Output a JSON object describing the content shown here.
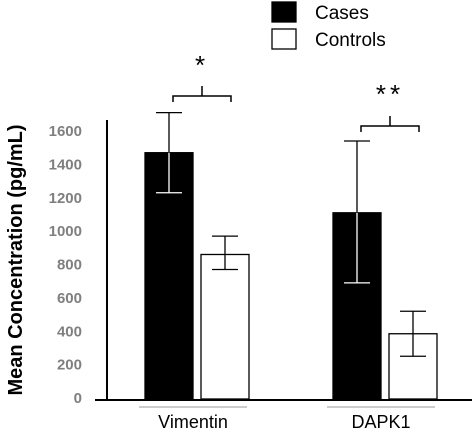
{
  "chart_data": {
    "type": "bar",
    "title": "",
    "xlabel": "",
    "ylabel": "Mean Concentration (pg/mL)",
    "ylim": [
      0,
      1600
    ],
    "yticks": [
      "0",
      "200",
      "400",
      "600",
      "800",
      "1000",
      "1200",
      "1400",
      "1600"
    ],
    "categories": [
      "Vimentin",
      "DAPK1"
    ],
    "series": [
      {
        "name": "Cases",
        "color": "#000000",
        "values": [
          1470,
          1110
        ],
        "err_low": [
          1230,
          690
        ],
        "err_high": [
          1710,
          1540
        ]
      },
      {
        "name": "Controls",
        "color": "#ffffff",
        "values": [
          860,
          385
        ],
        "err_low": [
          770,
          250
        ],
        "err_high": [
          970,
          520
        ]
      }
    ],
    "annotations": [
      "*",
      "**"
    ],
    "legend_position": "top-right",
    "grid": false
  }
}
